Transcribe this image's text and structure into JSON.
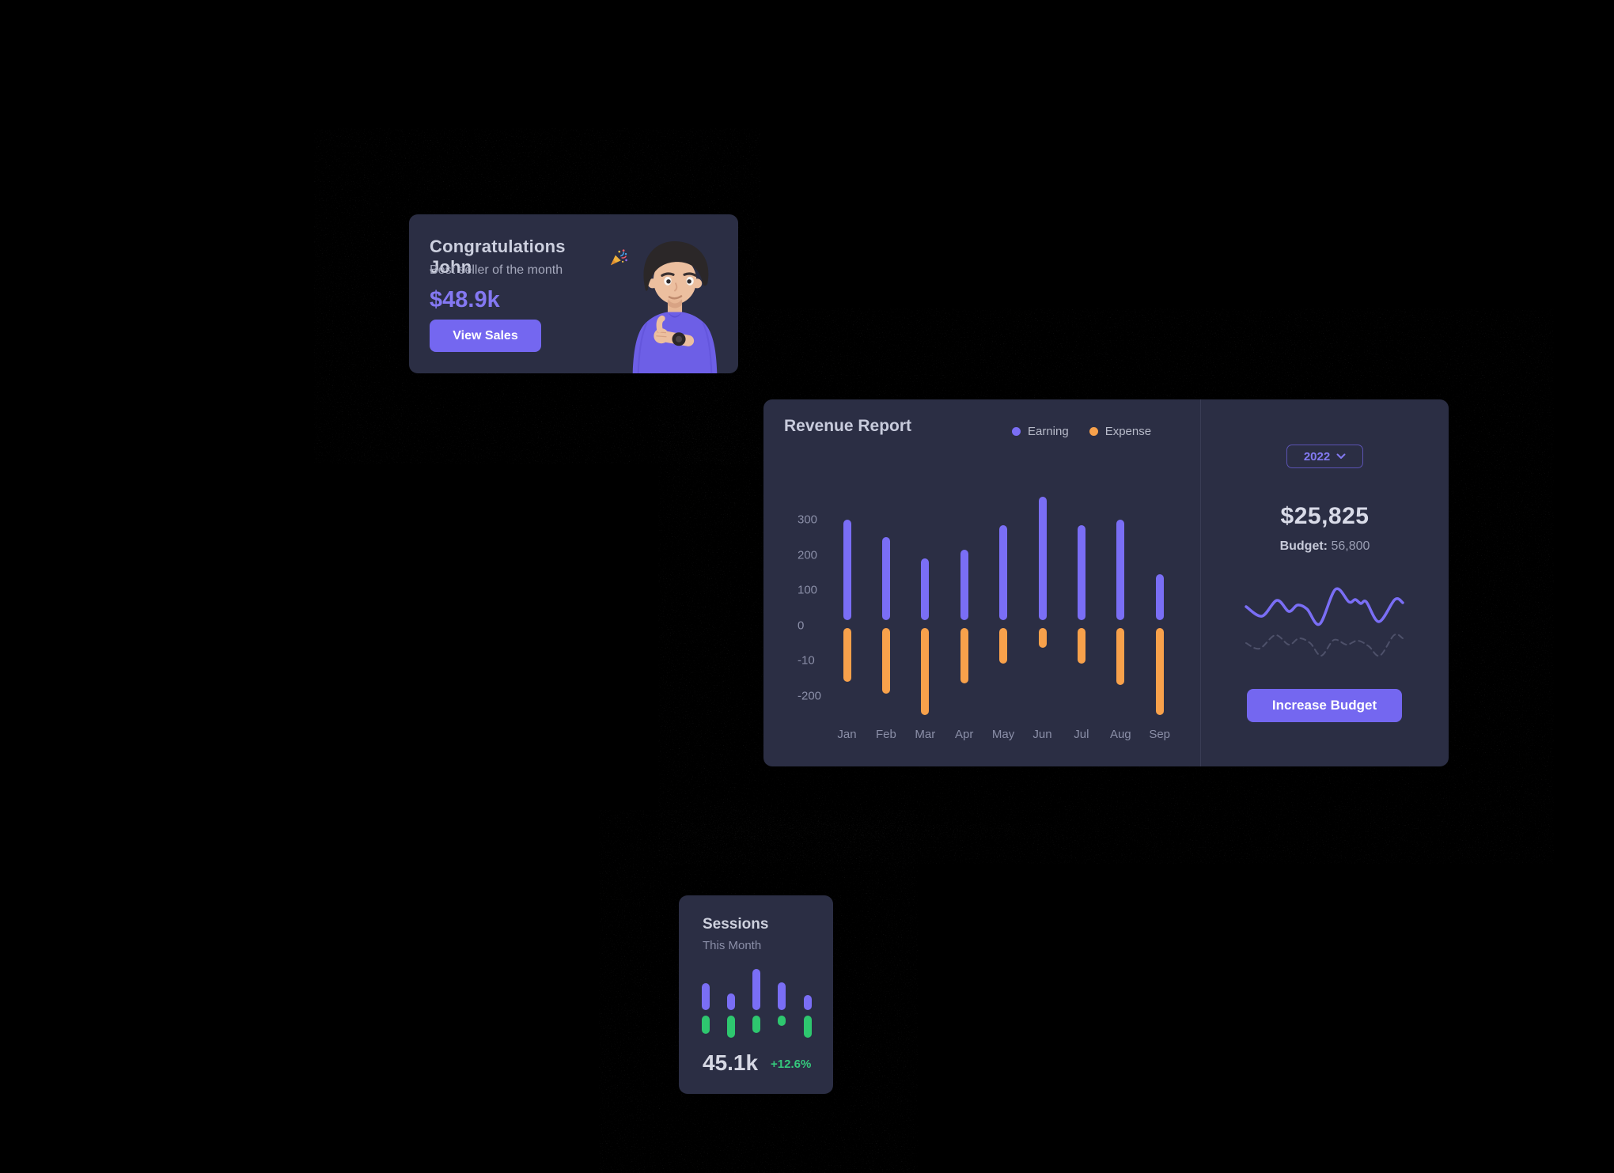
{
  "page": {
    "background": "#000000"
  },
  "congrats": {
    "title": "Congratulations John",
    "emoji": "🎉",
    "subtitle": "Best seller of the month",
    "amount": "$48.9k",
    "button_label": "View Sales"
  },
  "revenue": {
    "title": "Revenue Report",
    "year": "2022",
    "total": "$25,825",
    "budget_label": "Budget:",
    "budget_value": "56,800",
    "increase_button_label": "Increase Budget"
  },
  "sessions": {
    "title": "Sessions",
    "subtitle": "This Month",
    "value": "45.1k",
    "delta": "+12.6%"
  },
  "colors": {
    "card_bg": "#2B2E44",
    "accent_purple": "#7467F0",
    "bar_purple": "#7A6EF5",
    "expense_orange": "#F8A14B",
    "success_green": "#2EC76F",
    "heading_text": "#CDD0DF",
    "muted_text": "#8B8FA8"
  },
  "chart_data": [
    {
      "id": "revenue-report",
      "type": "bar",
      "title": "Revenue Report",
      "categories": [
        "Jan",
        "Feb",
        "Mar",
        "Apr",
        "May",
        "Jun",
        "Jul",
        "Aug",
        "Sep"
      ],
      "series": [
        {
          "name": "Earning",
          "color": "#7A6EF5",
          "base": 15,
          "values": [
            300,
            250,
            190,
            215,
            285,
            365,
            285,
            300,
            145
          ]
        },
        {
          "name": "Expense",
          "color": "#F8A14B",
          "base": -8,
          "values": [
            -160,
            -195,
            -255,
            -165,
            -110,
            -65,
            -110,
            -170,
            -255
          ]
        }
      ],
      "y_tick_labels": [
        "300",
        "200",
        "100",
        "0",
        "-10",
        "-200"
      ],
      "ylim": [
        -260,
        380
      ],
      "grid": false,
      "legend_position": "top-right"
    },
    {
      "id": "budget-sparkline",
      "type": "line",
      "legend_position": "none",
      "series": [
        {
          "name": "current-year",
          "style": "solid",
          "color": "#7A6EF5",
          "points": [
            [
              3,
              28
            ],
            [
              23,
              40
            ],
            [
              42,
              20
            ],
            [
              57,
              34
            ],
            [
              68,
              26
            ],
            [
              80,
              31
            ],
            [
              96,
              50
            ],
            [
              116,
              6
            ],
            [
              133,
              22
            ],
            [
              141,
              19
            ],
            [
              148,
              24
            ],
            [
              155,
              22
            ],
            [
              171,
              47
            ],
            [
              191,
              19
            ],
            [
              201,
              23
            ]
          ]
        },
        {
          "name": "previous-year",
          "style": "dashed",
          "color": "#4E516A",
          "points": [
            [
              3,
              74
            ],
            [
              20,
              81
            ],
            [
              40,
              64
            ],
            [
              57,
              76
            ],
            [
              70,
              68
            ],
            [
              84,
              74
            ],
            [
              98,
              90
            ],
            [
              114,
              70
            ],
            [
              130,
              76
            ],
            [
              144,
              71
            ],
            [
              158,
              78
            ],
            [
              172,
              90
            ],
            [
              190,
              64
            ],
            [
              201,
              68
            ]
          ]
        }
      ]
    },
    {
      "id": "sessions-mini",
      "type": "bar",
      "categories": [
        "1",
        "2",
        "3",
        "4",
        "5"
      ],
      "series": [
        {
          "name": "sessions-up",
          "color": "#7A6EF5",
          "values": [
            34,
            21,
            52,
            35,
            19
          ]
        },
        {
          "name": "sessions-down",
          "color": "#2EC76F",
          "values": [
            23,
            28,
            22,
            13,
            28
          ]
        }
      ]
    }
  ]
}
